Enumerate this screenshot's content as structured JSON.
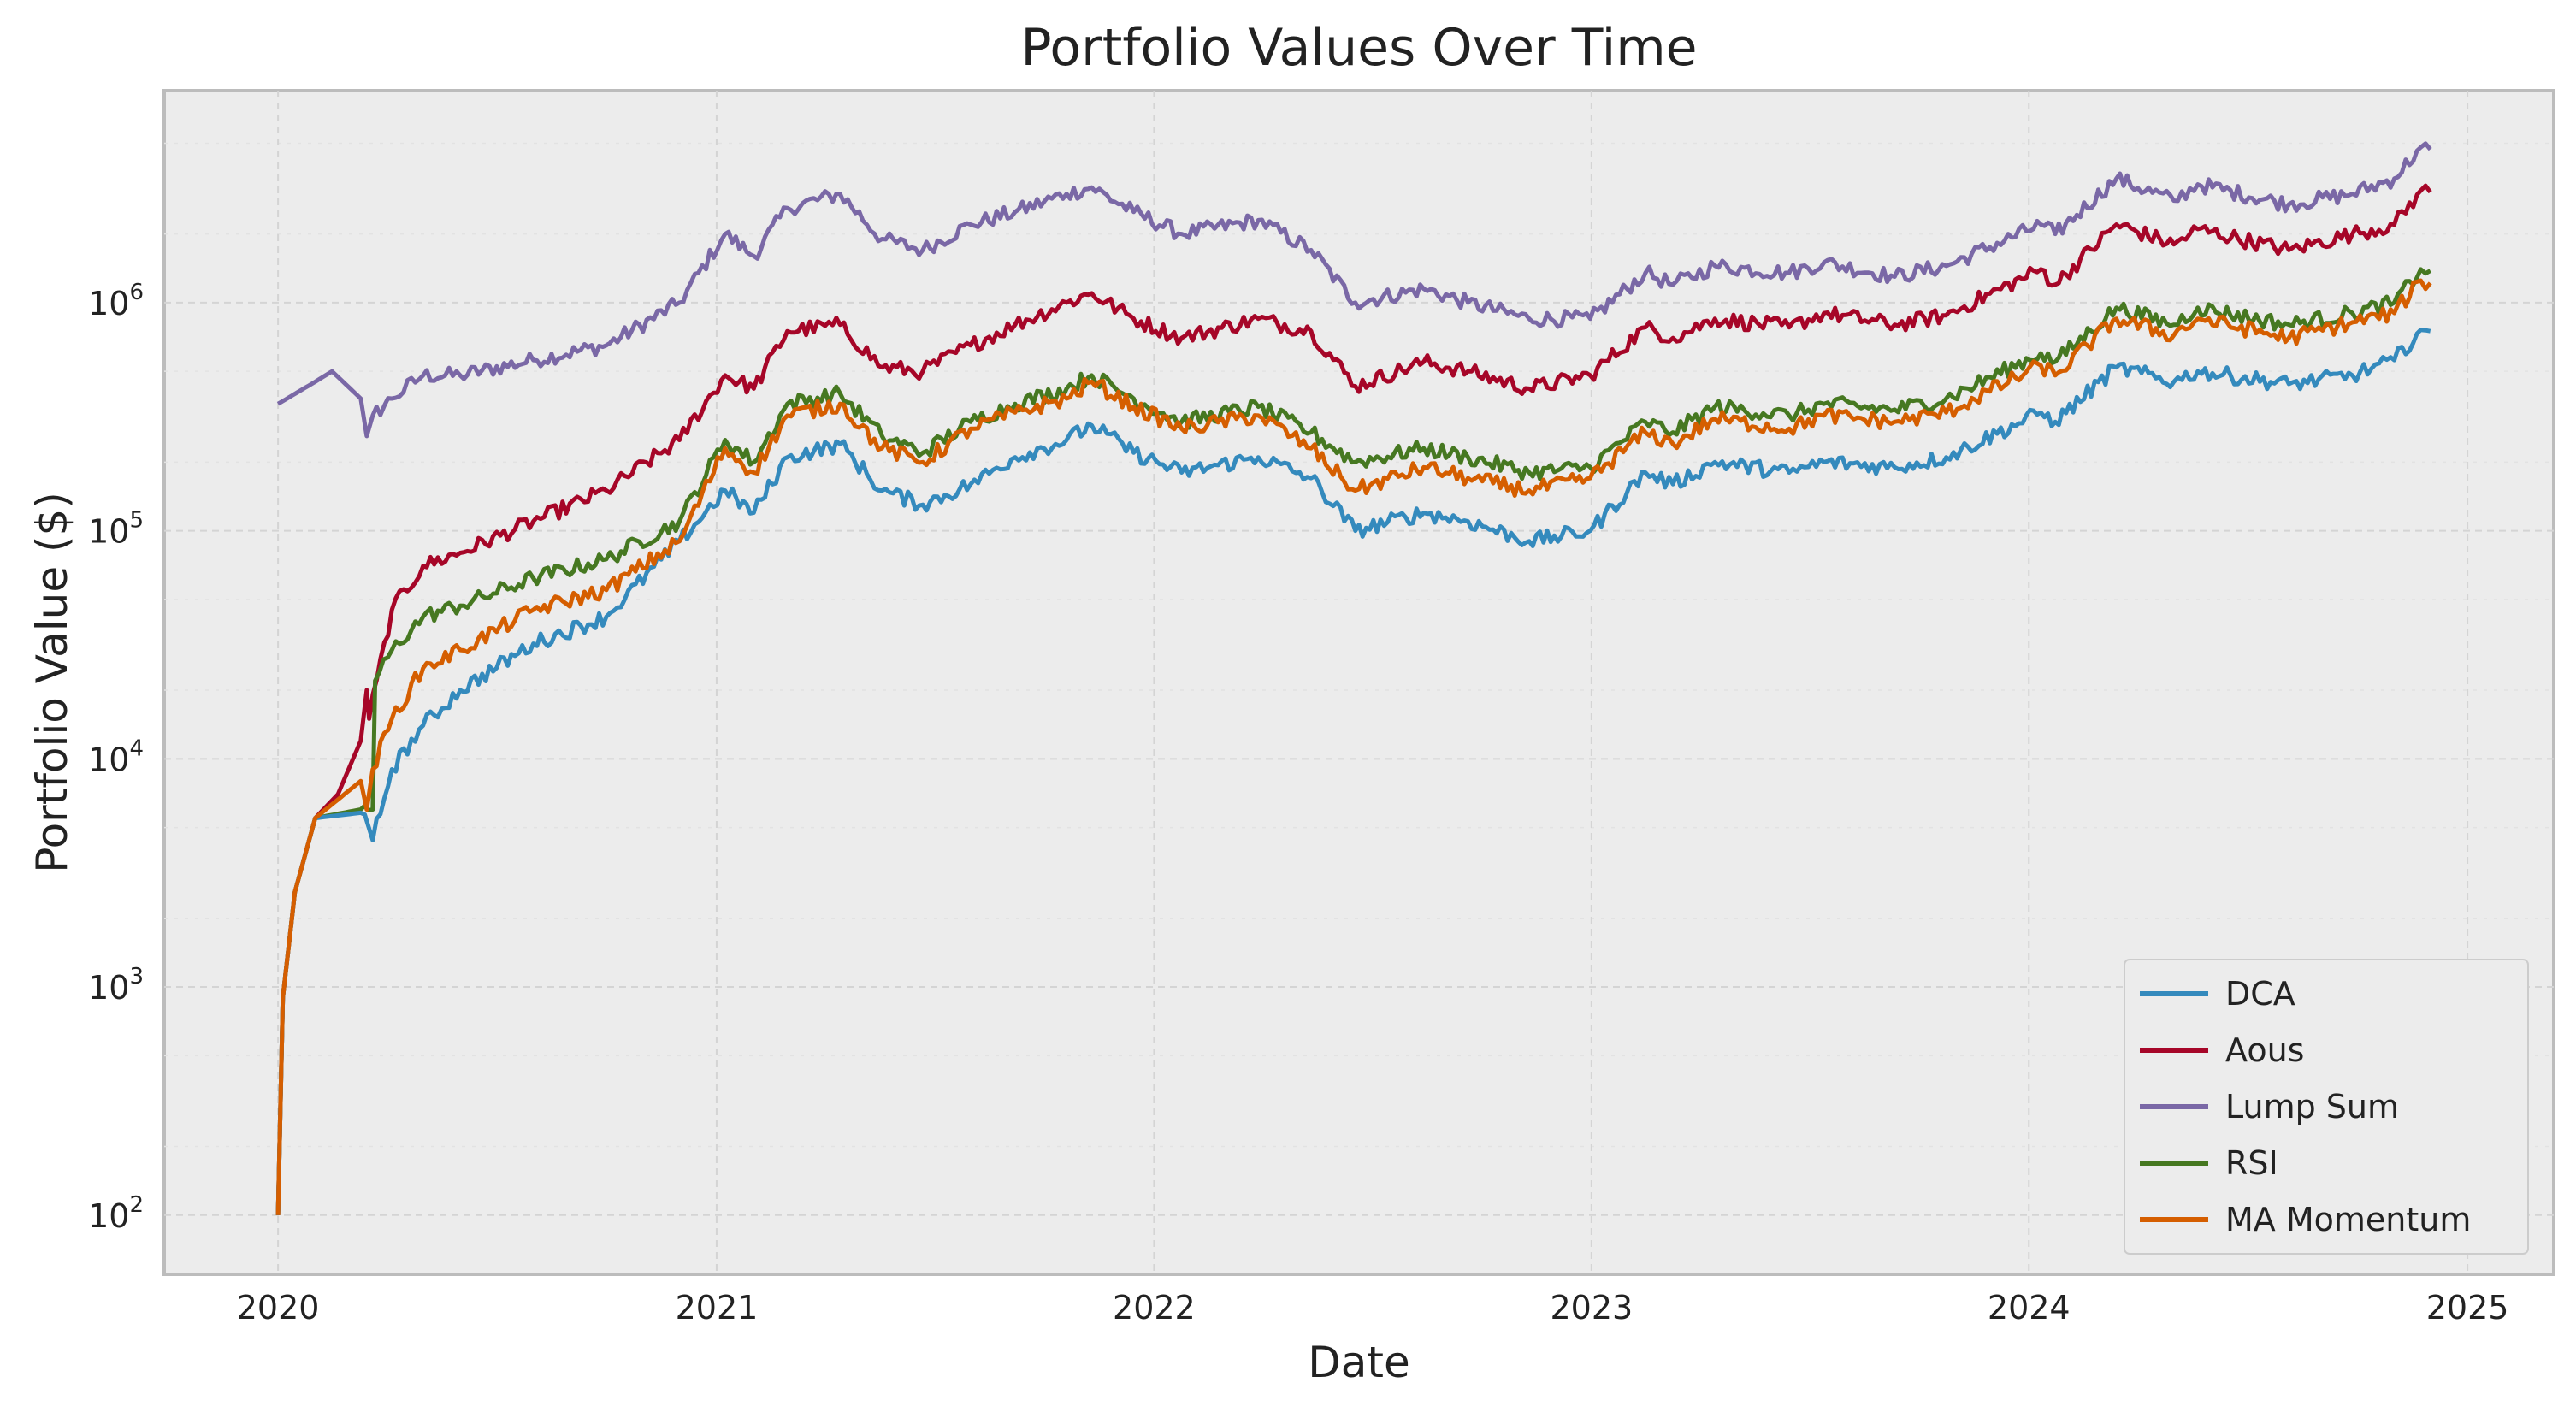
{
  "chart_data": {
    "type": "line",
    "title": "Portfolio Values Over Time",
    "xlabel": "Date",
    "ylabel": "Portfolio Value ($)",
    "yscale": "log",
    "ylim": [
      55,
      8500000
    ],
    "xlim": [
      "2019-09-28",
      "2025-03-14"
    ],
    "x_ticks": [
      "2020",
      "2021",
      "2022",
      "2023",
      "2024",
      "2025"
    ],
    "y_ticks": [
      {
        "base": "10",
        "exp": "2",
        "value": 100
      },
      {
        "base": "10",
        "exp": "3",
        "value": 1000
      },
      {
        "base": "10",
        "exp": "4",
        "value": 10000
      },
      {
        "base": "10",
        "exp": "5",
        "value": 100000
      },
      {
        "base": "10",
        "exp": "6",
        "value": 1000000
      }
    ],
    "grid": true,
    "legend_position": "bottom-right",
    "background": "#ececec",
    "series": [
      {
        "name": "DCA",
        "color": "#348abd",
        "dates": [
          "2020-01-01",
          "2020-01-05",
          "2020-01-15",
          "2020-02-01",
          "2020-03-10",
          "2020-03-20",
          "2020-04-05",
          "2020-05-01",
          "2020-06-01",
          "2020-08-01",
          "2020-10-01",
          "2020-12-01",
          "2021-01-08",
          "2021-02-01",
          "2021-03-01",
          "2021-04-14",
          "2021-05-19",
          "2021-06-22",
          "2021-08-01",
          "2021-09-07",
          "2021-10-20",
          "2021-11-10",
          "2021-12-15",
          "2022-01-24",
          "2022-03-29",
          "2022-05-12",
          "2022-06-18",
          "2022-08-14",
          "2022-09-20",
          "2022-11-10",
          "2022-12-31",
          "2023-02-15",
          "2023-03-10",
          "2023-04-14",
          "2023-06-15",
          "2023-07-14",
          "2023-09-11",
          "2023-10-24",
          "2024-01-11",
          "2024-01-23",
          "2024-03-14",
          "2024-05-01",
          "2024-05-21",
          "2024-08-05",
          "2024-09-27",
          "2024-11-01",
          "2024-11-23",
          "2024-12-01"
        ],
        "values": [
          100,
          900,
          2600,
          5500,
          5800,
          4400,
          9000,
          14000,
          20000,
          32000,
          42000,
          90000,
          150000,
          120000,
          210000,
          240000,
          150000,
          130000,
          160000,
          210000,
          250000,
          290000,
          220000,
          180000,
          210000,
          170000,
          100000,
          120000,
          110000,
          90000,
          100000,
          180000,
          160000,
          200000,
          180000,
          200000,
          190000,
          210000,
          330000,
          300000,
          520000,
          450000,
          500000,
          440000,
          480000,
          560000,
          760000,
          750000
        ]
      },
      {
        "name": "Aous",
        "color": "#a60628",
        "dates": [
          "2020-01-01",
          "2020-01-05",
          "2020-01-15",
          "2020-02-01",
          "2020-02-20",
          "2020-03-10",
          "2020-03-15",
          "2020-03-17",
          "2020-04-05",
          "2020-05-01",
          "2020-06-01",
          "2020-08-01",
          "2020-10-01",
          "2020-12-01",
          "2021-01-08",
          "2021-02-01",
          "2021-03-01",
          "2021-04-14",
          "2021-05-19",
          "2021-06-22",
          "2021-08-01",
          "2021-09-07",
          "2021-10-20",
          "2021-11-10",
          "2021-12-15",
          "2022-01-24",
          "2022-03-29",
          "2022-05-12",
          "2022-06-18",
          "2022-08-14",
          "2022-09-20",
          "2022-11-10",
          "2022-12-31",
          "2023-02-15",
          "2023-03-10",
          "2023-04-14",
          "2023-06-15",
          "2023-07-14",
          "2023-09-11",
          "2023-10-24",
          "2024-01-11",
          "2024-01-23",
          "2024-03-14",
          "2024-05-01",
          "2024-05-21",
          "2024-08-05",
          "2024-09-27",
          "2024-11-01",
          "2024-11-23",
          "2024-12-01"
        ],
        "values": [
          100,
          900,
          2600,
          5500,
          7000,
          12000,
          20000,
          15000,
          45000,
          70000,
          80000,
          110000,
          150000,
          250000,
          480000,
          420000,
          750000,
          800000,
          520000,
          500000,
          650000,
          800000,
          1000000,
          1100000,
          850000,
          700000,
          850000,
          750000,
          430000,
          550000,
          500000,
          420000,
          480000,
          780000,
          700000,
          850000,
          780000,
          900000,
          800000,
          880000,
          1400000,
          1200000,
          2200000,
          1800000,
          2100000,
          1700000,
          2000000,
          2200000,
          3100000,
          3050000
        ]
      },
      {
        "name": "Lump Sum",
        "color": "#7a68a6",
        "dates": [
          "2020-01-01",
          "2020-02-01",
          "2020-02-15",
          "2020-03-10",
          "2020-03-15",
          "2020-03-20",
          "2020-04-05",
          "2020-05-01",
          "2020-06-01",
          "2020-08-01",
          "2020-10-01",
          "2020-12-01",
          "2021-01-08",
          "2021-02-01",
          "2021-03-01",
          "2021-04-14",
          "2021-05-19",
          "2021-06-22",
          "2021-08-01",
          "2021-09-07",
          "2021-10-20",
          "2021-11-10",
          "2021-12-15",
          "2022-01-24",
          "2022-03-29",
          "2022-05-12",
          "2022-06-18",
          "2022-08-14",
          "2022-09-20",
          "2022-11-10",
          "2022-12-31",
          "2023-02-15",
          "2023-03-10",
          "2023-04-14",
          "2023-06-15",
          "2023-07-14",
          "2023-09-11",
          "2023-10-24",
          "2024-01-11",
          "2024-01-23",
          "2024-03-14",
          "2024-05-01",
          "2024-05-21",
          "2024-08-05",
          "2024-09-27",
          "2024-11-01",
          "2024-11-23",
          "2024-12-01"
        ],
        "values": [
          360000,
          450000,
          500000,
          380000,
          260000,
          320000,
          380000,
          480000,
          480000,
          560000,
          650000,
          1000000,
          2000000,
          1600000,
          2600000,
          3000000,
          1900000,
          1700000,
          2200000,
          2500000,
          3000000,
          3200000,
          2500000,
          2000000,
          2300000,
          1700000,
          1000000,
          1150000,
          1000000,
          850000,
          850000,
          1350000,
          1200000,
          1450000,
          1350000,
          1500000,
          1300000,
          1450000,
          2200000,
          2000000,
          3500000,
          2800000,
          3300000,
          2700000,
          3000000,
          3500000,
          4800000,
          4700000
        ]
      },
      {
        "name": "RSI",
        "color": "#467821",
        "dates": [
          "2020-01-01",
          "2020-01-05",
          "2020-01-15",
          "2020-02-01",
          "2020-03-10",
          "2020-03-20",
          "2020-03-22",
          "2020-04-05",
          "2020-05-01",
          "2020-06-01",
          "2020-08-01",
          "2020-10-01",
          "2020-12-01",
          "2021-01-08",
          "2021-02-01",
          "2021-03-01",
          "2021-04-14",
          "2021-05-19",
          "2021-06-22",
          "2021-08-01",
          "2021-09-07",
          "2021-10-20",
          "2021-11-10",
          "2021-12-15",
          "2022-01-24",
          "2022-03-29",
          "2022-05-12",
          "2022-06-18",
          "2022-08-14",
          "2022-09-20",
          "2022-11-10",
          "2022-12-31",
          "2023-02-15",
          "2023-03-10",
          "2023-04-14",
          "2023-06-15",
          "2023-07-14",
          "2023-09-11",
          "2023-10-24",
          "2024-01-11",
          "2024-01-23",
          "2024-03-14",
          "2024-05-01",
          "2024-05-21",
          "2024-08-05",
          "2024-09-27",
          "2024-11-01",
          "2024-11-23",
          "2024-12-01"
        ],
        "values": [
          100,
          900,
          2600,
          5500,
          6000,
          6000,
          22000,
          30000,
          42000,
          47000,
          62000,
          75000,
          110000,
          250000,
          200000,
          360000,
          400000,
          260000,
          220000,
          300000,
          360000,
          420000,
          480000,
          380000,
          300000,
          350000,
          270000,
          200000,
          230000,
          210000,
          180000,
          190000,
          300000,
          270000,
          350000,
          320000,
          360000,
          340000,
          380000,
          600000,
          550000,
          950000,
          800000,
          950000,
          800000,
          900000,
          1000000,
          1400000,
          1380000
        ]
      },
      {
        "name": "MA Momentum",
        "color": "#d55e00",
        "dates": [
          "2020-01-01",
          "2020-01-05",
          "2020-01-15",
          "2020-02-01",
          "2020-03-10",
          "2020-03-15",
          "2020-03-20",
          "2020-04-05",
          "2020-05-01",
          "2020-06-01",
          "2020-08-01",
          "2020-10-01",
          "2020-12-01",
          "2021-01-08",
          "2021-02-01",
          "2021-03-01",
          "2021-04-14",
          "2021-05-19",
          "2021-06-22",
          "2021-08-01",
          "2021-09-07",
          "2021-10-20",
          "2021-11-10",
          "2021-12-15",
          "2022-01-24",
          "2022-03-29",
          "2022-05-12",
          "2022-06-18",
          "2022-08-14",
          "2022-09-20",
          "2022-11-10",
          "2022-12-31",
          "2023-02-15",
          "2023-03-10",
          "2023-04-14",
          "2023-06-15",
          "2023-07-14",
          "2023-09-11",
          "2023-10-24",
          "2024-01-11",
          "2024-01-23",
          "2024-03-14",
          "2024-05-01",
          "2024-05-21",
          "2024-08-05",
          "2024-09-27",
          "2024-11-01",
          "2024-11-23",
          "2024-12-01"
        ],
        "values": [
          100,
          900,
          2600,
          5500,
          8000,
          6000,
          9000,
          15000,
          25000,
          30000,
          45000,
          55000,
          90000,
          230000,
          180000,
          320000,
          360000,
          230000,
          200000,
          280000,
          330000,
          380000,
          450000,
          350000,
          280000,
          320000,
          230000,
          150000,
          190000,
          170000,
          150000,
          170000,
          270000,
          240000,
          310000,
          280000,
          320000,
          300000,
          330000,
          530000,
          480000,
          850000,
          720000,
          850000,
          700000,
          820000,
          900000,
          1250000,
          1220000
        ]
      }
    ]
  }
}
